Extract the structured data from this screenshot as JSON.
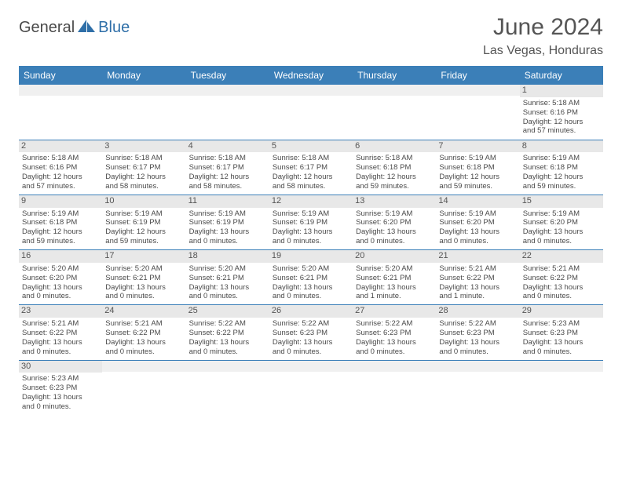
{
  "logo": {
    "part1": "General",
    "part2": "Blue"
  },
  "title": "June 2024",
  "location": "Las Vegas, Honduras",
  "colors": {
    "header_bg": "#3b7fb8",
    "header_text": "#ffffff",
    "daynum_bg": "#e8e8e8",
    "text": "#4a4a4a",
    "accent": "#2f6fa8",
    "border": "#3b7fb8"
  },
  "day_headers": [
    "Sunday",
    "Monday",
    "Tuesday",
    "Wednesday",
    "Thursday",
    "Friday",
    "Saturday"
  ],
  "weeks": [
    [
      {
        "n": "",
        "lines": [
          "",
          "",
          "",
          ""
        ]
      },
      {
        "n": "",
        "lines": [
          "",
          "",
          "",
          ""
        ]
      },
      {
        "n": "",
        "lines": [
          "",
          "",
          "",
          ""
        ]
      },
      {
        "n": "",
        "lines": [
          "",
          "",
          "",
          ""
        ]
      },
      {
        "n": "",
        "lines": [
          "",
          "",
          "",
          ""
        ]
      },
      {
        "n": "",
        "lines": [
          "",
          "",
          "",
          ""
        ]
      },
      {
        "n": "1",
        "lines": [
          "Sunrise: 5:18 AM",
          "Sunset: 6:16 PM",
          "Daylight: 12 hours",
          "and 57 minutes."
        ]
      }
    ],
    [
      {
        "n": "2",
        "lines": [
          "Sunrise: 5:18 AM",
          "Sunset: 6:16 PM",
          "Daylight: 12 hours",
          "and 57 minutes."
        ]
      },
      {
        "n": "3",
        "lines": [
          "Sunrise: 5:18 AM",
          "Sunset: 6:17 PM",
          "Daylight: 12 hours",
          "and 58 minutes."
        ]
      },
      {
        "n": "4",
        "lines": [
          "Sunrise: 5:18 AM",
          "Sunset: 6:17 PM",
          "Daylight: 12 hours",
          "and 58 minutes."
        ]
      },
      {
        "n": "5",
        "lines": [
          "Sunrise: 5:18 AM",
          "Sunset: 6:17 PM",
          "Daylight: 12 hours",
          "and 58 minutes."
        ]
      },
      {
        "n": "6",
        "lines": [
          "Sunrise: 5:18 AM",
          "Sunset: 6:18 PM",
          "Daylight: 12 hours",
          "and 59 minutes."
        ]
      },
      {
        "n": "7",
        "lines": [
          "Sunrise: 5:19 AM",
          "Sunset: 6:18 PM",
          "Daylight: 12 hours",
          "and 59 minutes."
        ]
      },
      {
        "n": "8",
        "lines": [
          "Sunrise: 5:19 AM",
          "Sunset: 6:18 PM",
          "Daylight: 12 hours",
          "and 59 minutes."
        ]
      }
    ],
    [
      {
        "n": "9",
        "lines": [
          "Sunrise: 5:19 AM",
          "Sunset: 6:18 PM",
          "Daylight: 12 hours",
          "and 59 minutes."
        ]
      },
      {
        "n": "10",
        "lines": [
          "Sunrise: 5:19 AM",
          "Sunset: 6:19 PM",
          "Daylight: 12 hours",
          "and 59 minutes."
        ]
      },
      {
        "n": "11",
        "lines": [
          "Sunrise: 5:19 AM",
          "Sunset: 6:19 PM",
          "Daylight: 13 hours",
          "and 0 minutes."
        ]
      },
      {
        "n": "12",
        "lines": [
          "Sunrise: 5:19 AM",
          "Sunset: 6:19 PM",
          "Daylight: 13 hours",
          "and 0 minutes."
        ]
      },
      {
        "n": "13",
        "lines": [
          "Sunrise: 5:19 AM",
          "Sunset: 6:20 PM",
          "Daylight: 13 hours",
          "and 0 minutes."
        ]
      },
      {
        "n": "14",
        "lines": [
          "Sunrise: 5:19 AM",
          "Sunset: 6:20 PM",
          "Daylight: 13 hours",
          "and 0 minutes."
        ]
      },
      {
        "n": "15",
        "lines": [
          "Sunrise: 5:19 AM",
          "Sunset: 6:20 PM",
          "Daylight: 13 hours",
          "and 0 minutes."
        ]
      }
    ],
    [
      {
        "n": "16",
        "lines": [
          "Sunrise: 5:20 AM",
          "Sunset: 6:20 PM",
          "Daylight: 13 hours",
          "and 0 minutes."
        ]
      },
      {
        "n": "17",
        "lines": [
          "Sunrise: 5:20 AM",
          "Sunset: 6:21 PM",
          "Daylight: 13 hours",
          "and 0 minutes."
        ]
      },
      {
        "n": "18",
        "lines": [
          "Sunrise: 5:20 AM",
          "Sunset: 6:21 PM",
          "Daylight: 13 hours",
          "and 0 minutes."
        ]
      },
      {
        "n": "19",
        "lines": [
          "Sunrise: 5:20 AM",
          "Sunset: 6:21 PM",
          "Daylight: 13 hours",
          "and 0 minutes."
        ]
      },
      {
        "n": "20",
        "lines": [
          "Sunrise: 5:20 AM",
          "Sunset: 6:21 PM",
          "Daylight: 13 hours",
          "and 1 minute."
        ]
      },
      {
        "n": "21",
        "lines": [
          "Sunrise: 5:21 AM",
          "Sunset: 6:22 PM",
          "Daylight: 13 hours",
          "and 1 minute."
        ]
      },
      {
        "n": "22",
        "lines": [
          "Sunrise: 5:21 AM",
          "Sunset: 6:22 PM",
          "Daylight: 13 hours",
          "and 0 minutes."
        ]
      }
    ],
    [
      {
        "n": "23",
        "lines": [
          "Sunrise: 5:21 AM",
          "Sunset: 6:22 PM",
          "Daylight: 13 hours",
          "and 0 minutes."
        ]
      },
      {
        "n": "24",
        "lines": [
          "Sunrise: 5:21 AM",
          "Sunset: 6:22 PM",
          "Daylight: 13 hours",
          "and 0 minutes."
        ]
      },
      {
        "n": "25",
        "lines": [
          "Sunrise: 5:22 AM",
          "Sunset: 6:22 PM",
          "Daylight: 13 hours",
          "and 0 minutes."
        ]
      },
      {
        "n": "26",
        "lines": [
          "Sunrise: 5:22 AM",
          "Sunset: 6:23 PM",
          "Daylight: 13 hours",
          "and 0 minutes."
        ]
      },
      {
        "n": "27",
        "lines": [
          "Sunrise: 5:22 AM",
          "Sunset: 6:23 PM",
          "Daylight: 13 hours",
          "and 0 minutes."
        ]
      },
      {
        "n": "28",
        "lines": [
          "Sunrise: 5:22 AM",
          "Sunset: 6:23 PM",
          "Daylight: 13 hours",
          "and 0 minutes."
        ]
      },
      {
        "n": "29",
        "lines": [
          "Sunrise: 5:23 AM",
          "Sunset: 6:23 PM",
          "Daylight: 13 hours",
          "and 0 minutes."
        ]
      }
    ],
    [
      {
        "n": "30",
        "lines": [
          "Sunrise: 5:23 AM",
          "Sunset: 6:23 PM",
          "Daylight: 13 hours",
          "and 0 minutes."
        ]
      },
      {
        "n": "",
        "lines": [
          "",
          "",
          "",
          ""
        ]
      },
      {
        "n": "",
        "lines": [
          "",
          "",
          "",
          ""
        ]
      },
      {
        "n": "",
        "lines": [
          "",
          "",
          "",
          ""
        ]
      },
      {
        "n": "",
        "lines": [
          "",
          "",
          "",
          ""
        ]
      },
      {
        "n": "",
        "lines": [
          "",
          "",
          "",
          ""
        ]
      },
      {
        "n": "",
        "lines": [
          "",
          "",
          "",
          ""
        ]
      }
    ]
  ]
}
